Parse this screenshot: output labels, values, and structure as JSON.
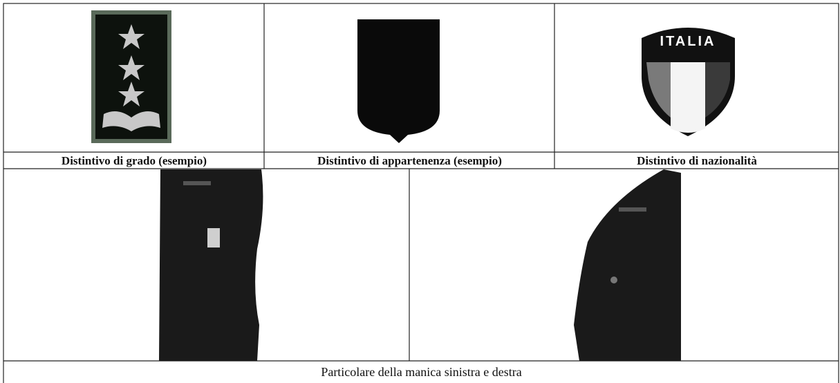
{
  "badges": [
    {
      "caption": "Distintivo di grado (esempio)"
    },
    {
      "caption": "Distintivo di appartenenza (esempio)"
    },
    {
      "caption": "Distintivo di nazionalità",
      "shield_text": "ITALIA"
    }
  ],
  "sleeves": {
    "caption": "Particolare della manica sinistra e destra"
  }
}
